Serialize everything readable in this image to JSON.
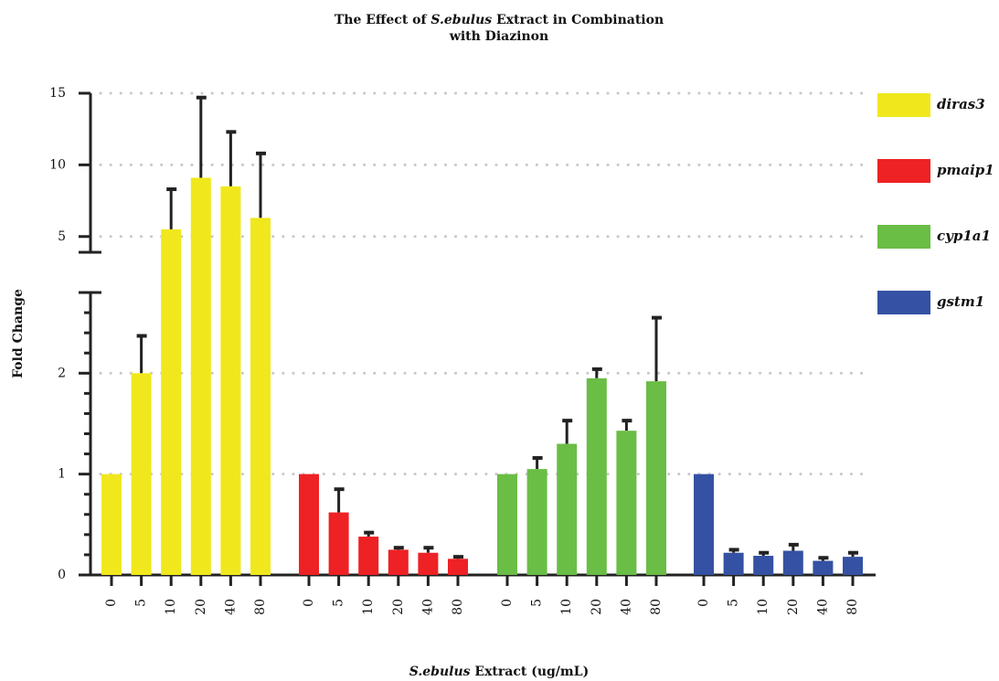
{
  "chart_data": {
    "type": "bar",
    "title": [
      "The Effect of ",
      "S.ebulus",
      " Extract in Combination",
      "with Diazinon"
    ],
    "xlabel": [
      "S.ebulus",
      " Extract (ug/mL)"
    ],
    "ylabel": "Fold Change",
    "categories": [
      "0",
      "5",
      "10",
      "20",
      "40",
      "80"
    ],
    "series": [
      {
        "name": "diras3",
        "color": "#f0e81c",
        "values": [
          1.0,
          2.0,
          5.5,
          9.1,
          8.5,
          6.3
        ],
        "errors": [
          0,
          0.37,
          2.8,
          5.6,
          3.8,
          4.5
        ]
      },
      {
        "name": "pmaip1",
        "color": "#ee2124",
        "values": [
          1.0,
          0.62,
          0.38,
          0.25,
          0.22,
          0.16
        ],
        "errors": [
          0,
          0.23,
          0.04,
          0.02,
          0.05,
          0.02
        ]
      },
      {
        "name": "cyp1a1",
        "color": "#6abd45",
        "values": [
          1.0,
          1.05,
          1.3,
          1.95,
          1.43,
          1.92
        ],
        "errors": [
          0,
          0.11,
          0.23,
          0.09,
          0.1,
          0.63
        ]
      },
      {
        "name": "gstm1",
        "color": "#3451a3",
        "values": [
          1.0,
          0.22,
          0.19,
          0.24,
          0.14,
          0.18
        ],
        "errors": [
          0,
          0.03,
          0.03,
          0.06,
          0.03,
          0.04
        ]
      }
    ],
    "ylim": [
      0,
      15
    ],
    "axis_break": [
      2.8,
      3.9
    ],
    "yticks": [
      0,
      1,
      2,
      5,
      10,
      15
    ],
    "yticks_minor": [
      0.2,
      0.4,
      0.6,
      0.8,
      1.2,
      1.4,
      1.6,
      1.8,
      2.2,
      2.4,
      2.6
    ],
    "grid": true,
    "legend": "right"
  }
}
